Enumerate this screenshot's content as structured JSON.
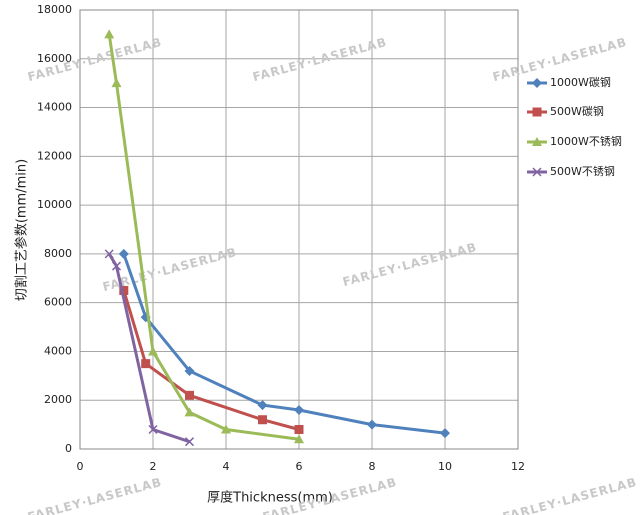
{
  "chart_data": {
    "type": "line",
    "ylabel": "切割工艺参数(mm/min)",
    "xlabel": "厚度Thickness(mm)",
    "watermark": "FARLEY·LASERLAB",
    "xlim": [
      0,
      12
    ],
    "xticks": [
      0,
      2,
      4,
      6,
      8,
      10,
      12
    ],
    "ylim": [
      0,
      18000
    ],
    "yticks": [
      0,
      2000,
      4000,
      6000,
      8000,
      10000,
      12000,
      14000,
      16000,
      18000
    ],
    "grid": true,
    "legend": "right",
    "series": [
      {
        "name": "1000W碳钢",
        "color": "#4f81bd",
        "marker": "diamond",
        "x": [
          1.2,
          1.8,
          3,
          5,
          6,
          8,
          10
        ],
        "values": [
          8000,
          5400,
          3200,
          1800,
          1600,
          1000,
          650
        ]
      },
      {
        "name": "500W碳钢",
        "color": "#c0504d",
        "marker": "square",
        "x": [
          1.2,
          1.8,
          3,
          5,
          6
        ],
        "values": [
          6500,
          3500,
          2200,
          1200,
          800
        ]
      },
      {
        "name": "1000W不锈钢",
        "color": "#9bbb59",
        "marker": "triangle",
        "x": [
          0.8,
          1,
          2,
          3,
          4,
          6
        ],
        "values": [
          17000,
          15000,
          4000,
          1500,
          800,
          400
        ]
      },
      {
        "name": "500W不锈钢",
        "color": "#8064a2",
        "marker": "x",
        "x": [
          0.8,
          1,
          2,
          3
        ],
        "values": [
          8000,
          7500,
          800,
          300
        ]
      }
    ]
  }
}
